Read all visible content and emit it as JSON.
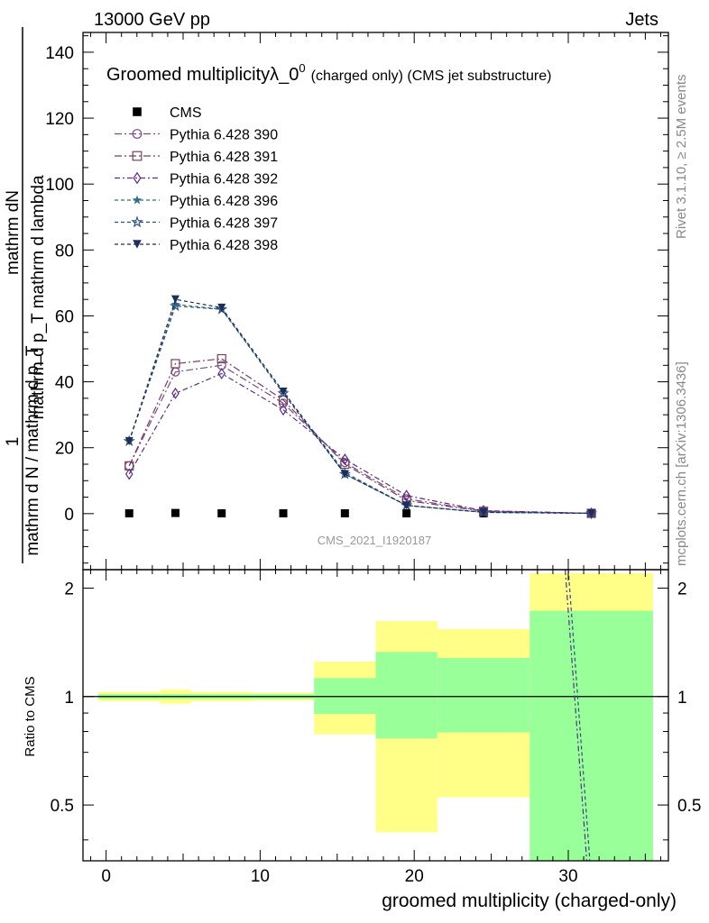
{
  "header": {
    "left": "13000 GeV pp",
    "right": "Jets"
  },
  "side_labels": {
    "rivet": "Rivet 3.1.10, ≥ 2.5M events",
    "mcplots": "mcplots.cern.ch [arXiv:1306.3436]"
  },
  "watermark": "CMS_2021_I1920187",
  "chart_data": [
    {
      "type": "line",
      "title": "Groomed multiplicityλ_0",
      "title_sup": "0",
      "title_suffix": "(charged only) (CMS jet substructure)",
      "ylabel_numerator": "mathrm dN",
      "ylabel_denominator": "mathrm d p_T mathrm d lambda",
      "ylabel_left_numerator": "1",
      "ylabel_left_denominator": "mathrm d N / mathrm d p_T",
      "ylabel_full": "1/(mathrm d N / mathrm d p_T) mathrm dN/(mathrm d p_T mathrm d lambda)",
      "ylim": [
        -17,
        146
      ],
      "xlim": [
        -1.5,
        36.5
      ],
      "yticks": [
        0,
        20,
        40,
        60,
        80,
        100,
        120,
        140
      ],
      "grid": false,
      "legend_position": "top-left",
      "x": [
        1.5,
        4.5,
        7.5,
        11.5,
        15.5,
        19.5,
        24.5,
        31.5
      ],
      "series": [
        {
          "name": "CMS",
          "color": "#000000",
          "marker": "filled-square",
          "dash": "none",
          "values": [
            0.1,
            0.2,
            0.1,
            0.1,
            0.1,
            0.1,
            0.1,
            0.1
          ]
        },
        {
          "name": "Pythia 6.428 390",
          "color": "#7b4a86",
          "marker": "open-circle",
          "dash": "8,3,2,3",
          "values": [
            14.5,
            43.0,
            45.0,
            33.5,
            15.5,
            4.5,
            0.8,
            0.1
          ]
        },
        {
          "name": "Pythia 6.428 391",
          "color": "#7a3f5e",
          "marker": "open-square",
          "dash": "8,3,2,3",
          "values": [
            14.5,
            45.5,
            47.0,
            34.5,
            15.0,
            4.0,
            0.7,
            0.1
          ]
        },
        {
          "name": "Pythia 6.428 392",
          "color": "#5a2d8a",
          "marker": "open-diamond",
          "dash": "6,3,2,3",
          "values": [
            12.0,
            36.5,
            42.5,
            31.5,
            16.5,
            5.5,
            0.9,
            0.1
          ]
        },
        {
          "name": "Pythia 6.428 396",
          "color": "#2d6e8c",
          "marker": "filled-star",
          "dash": "4,3",
          "values": [
            22.0,
            63.5,
            62.0,
            37.0,
            12.5,
            2.5,
            0.4,
            0.1
          ]
        },
        {
          "name": "Pythia 6.428 397",
          "color": "#2d4f7a",
          "marker": "open-star",
          "dash": "4,3",
          "values": [
            22.0,
            63.0,
            62.0,
            36.5,
            12.0,
            2.5,
            0.4,
            0.1
          ]
        },
        {
          "name": "Pythia 6.428 398",
          "color": "#1d2d5e",
          "marker": "filled-triangle-down",
          "dash": "4,3",
          "values": [
            22.0,
            65.0,
            62.5,
            37.0,
            12.0,
            2.5,
            0.4,
            0.1
          ]
        }
      ]
    },
    {
      "type": "area",
      "ylabel": "Ratio to CMS",
      "xlabel": "groomed multiplicity (charged-only)",
      "xlim": [
        -1.5,
        36.5
      ],
      "ylim": [
        0.35,
        2.25
      ],
      "xticks": [
        0,
        10,
        20,
        30
      ],
      "yticks": [
        0.5,
        1,
        2
      ],
      "ytick_labels": [
        "0.5",
        "1",
        "2"
      ],
      "bins": [
        {
          "lo": -0.5,
          "hi": 3.5,
          "stat_lo": 0.985,
          "stat_hi": 1.015,
          "tot_lo": 0.97,
          "tot_hi": 1.03
        },
        {
          "lo": 3.5,
          "hi": 5.5,
          "stat_lo": 0.985,
          "stat_hi": 1.015,
          "tot_lo": 0.955,
          "tot_hi": 1.045
        },
        {
          "lo": 5.5,
          "hi": 9.5,
          "stat_lo": 0.985,
          "stat_hi": 1.015,
          "tot_lo": 0.97,
          "tot_hi": 1.03
        },
        {
          "lo": 9.5,
          "hi": 13.5,
          "stat_lo": 0.985,
          "stat_hi": 1.015,
          "tot_lo": 0.975,
          "tot_hi": 1.025
        },
        {
          "lo": 13.5,
          "hi": 17.5,
          "stat_lo": 0.895,
          "stat_hi": 1.125,
          "tot_lo": 0.785,
          "tot_hi": 1.25
        },
        {
          "lo": 17.5,
          "hi": 21.5,
          "stat_lo": 0.765,
          "stat_hi": 1.33,
          "tot_lo": 0.42,
          "tot_hi": 1.62
        },
        {
          "lo": 21.5,
          "hi": 27.5,
          "stat_lo": 0.795,
          "stat_hi": 1.28,
          "tot_lo": 0.525,
          "tot_hi": 1.54
        },
        {
          "lo": 27.5,
          "hi": 35.5,
          "stat_lo": 0.35,
          "stat_hi": 1.73,
          "tot_lo": 0.35,
          "tot_hi": 2.2
        }
      ],
      "ratio_lines": [
        {
          "color": "#5a2d8a",
          "dash": "6,3,2,3",
          "points": [
            [
              29.8,
              2.25
            ],
            [
              31.2,
              0.35
            ]
          ]
        },
        {
          "color": "#2d4f7a",
          "dash": "4,3",
          "points": [
            [
              30.0,
              2.25
            ],
            [
              31.4,
              0.35
            ]
          ]
        }
      ],
      "colors": {
        "stat_band": "#99ff99",
        "total_band": "#ffff88",
        "reference_line": "#000000"
      }
    }
  ]
}
